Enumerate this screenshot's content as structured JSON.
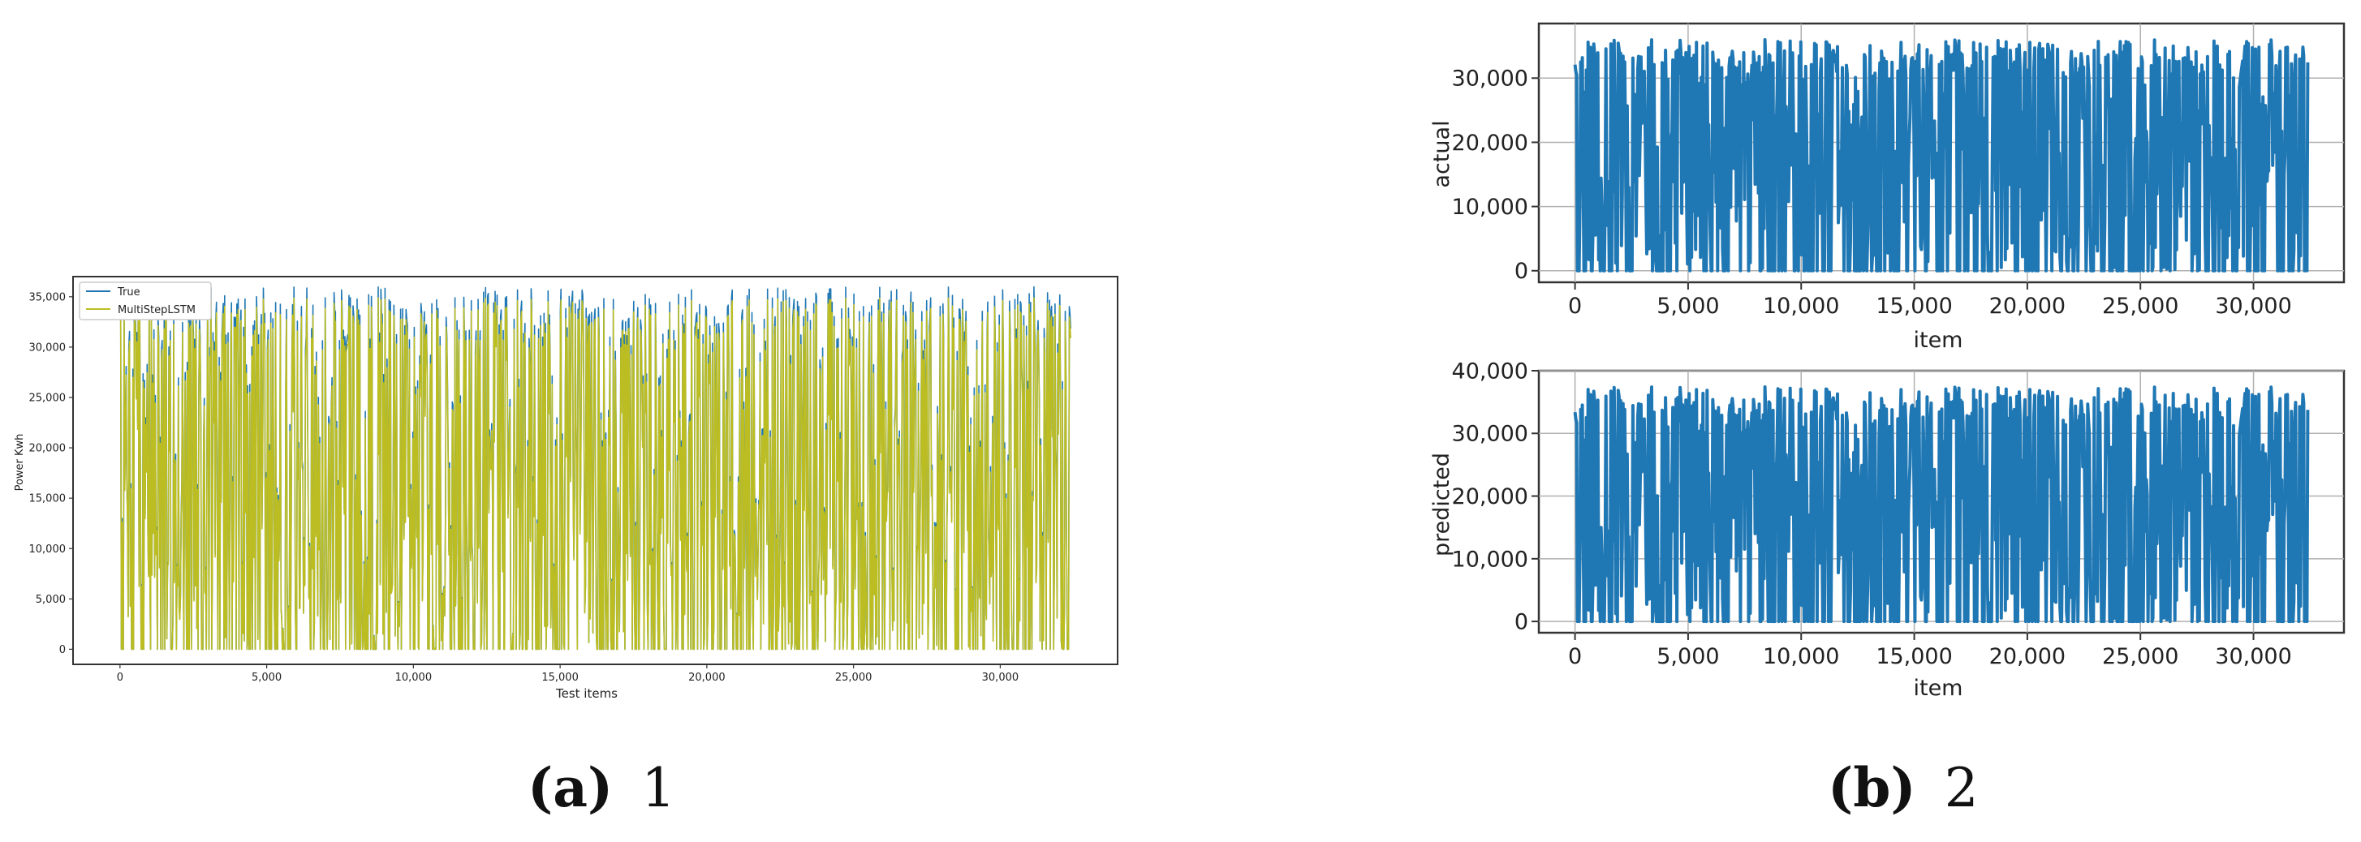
{
  "captions": {
    "a_letter": "(a)",
    "a_text": "1",
    "b_letter": "(b)",
    "b_text": "2"
  },
  "colors": {
    "true_line": "#1f77b4",
    "pred_line": "#bcbd22",
    "blue": "#1f77b4"
  },
  "chart_data": [
    {
      "id": "a",
      "type": "line",
      "xlabel": "Test items",
      "ylabel": "Power Kwh",
      "xlim": [
        -1600,
        34000
      ],
      "ylim": [
        -1500,
        37000
      ],
      "xticks": [
        0,
        5000,
        10000,
        15000,
        20000,
        25000,
        30000
      ],
      "xtick_labels": [
        "0",
        "5,000",
        "10,000",
        "15,000",
        "20,000",
        "25,000",
        "30,000"
      ],
      "yticks": [
        0,
        5000,
        10000,
        15000,
        20000,
        25000,
        30000,
        35000
      ],
      "ytick_labels": [
        "0",
        "5,000",
        "10,000",
        "15,000",
        "20,000",
        "25,000",
        "30,000",
        "35,000"
      ],
      "grid": false,
      "legend_position": "top-left",
      "series": [
        {
          "name": "True",
          "color": "#1f77b4"
        },
        {
          "name": "MultiStepLSTM",
          "color": "#bcbd22"
        }
      ],
      "x_range": [
        0,
        32400
      ],
      "y_range": [
        0,
        36000
      ]
    },
    {
      "id": "b-top",
      "type": "line",
      "xlabel": "item",
      "ylabel": "actual",
      "xlim": [
        -1600,
        34000
      ],
      "ylim": [
        -1800,
        38500
      ],
      "xticks": [
        0,
        5000,
        10000,
        15000,
        20000,
        25000,
        30000
      ],
      "xtick_labels": [
        "0",
        "5,000",
        "10,000",
        "15,000",
        "20,000",
        "25,000",
        "30,000"
      ],
      "yticks": [
        0,
        10000,
        20000,
        30000
      ],
      "ytick_labels": [
        "0",
        "10,000",
        "20,000",
        "30,000"
      ],
      "grid": true,
      "series": [
        {
          "color": "#1f77b4"
        }
      ],
      "x_range": [
        0,
        32400
      ],
      "y_range": [
        0,
        36000
      ]
    },
    {
      "id": "b-bottom",
      "type": "line",
      "xlabel": "item",
      "ylabel": "predicted",
      "xlim": [
        -1600,
        34000
      ],
      "ylim": [
        -1800,
        40000
      ],
      "xticks": [
        0,
        5000,
        10000,
        15000,
        20000,
        25000,
        30000
      ],
      "xtick_labels": [
        "0",
        "5,000",
        "10,000",
        "15,000",
        "20,000",
        "25,000",
        "30,000"
      ],
      "yticks": [
        0,
        10000,
        20000,
        30000,
        40000
      ],
      "ytick_labels": [
        "0",
        "10,000",
        "20,000",
        "30,000",
        "40,000"
      ],
      "grid": true,
      "series": [
        {
          "color": "#1f77b4"
        }
      ],
      "x_range": [
        0,
        32400
      ],
      "y_range": [
        0,
        38000
      ]
    }
  ]
}
